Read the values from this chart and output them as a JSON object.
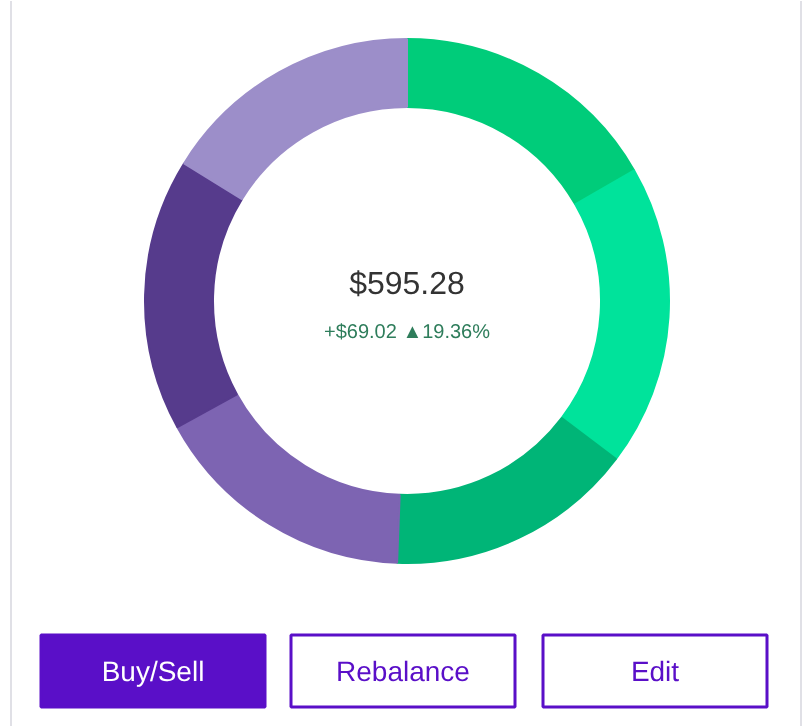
{
  "chart_data": {
    "type": "donut",
    "title": "$595.28",
    "subtitle": "+$69.02 ▲19.36%",
    "categories": [
      null,
      null,
      null,
      null,
      null,
      null
    ],
    "values": [
      16.7,
      18.6,
      15.3,
      16.4,
      16.8,
      16.2
    ],
    "colors": [
      "#00cc7a",
      "#00e39b",
      "#00b577",
      "#7d64b2",
      "#563b8c",
      "#9c8ec9"
    ],
    "annotations": [
      "Buy/Sell",
      "Rebalance",
      "Edit"
    ]
  }
}
